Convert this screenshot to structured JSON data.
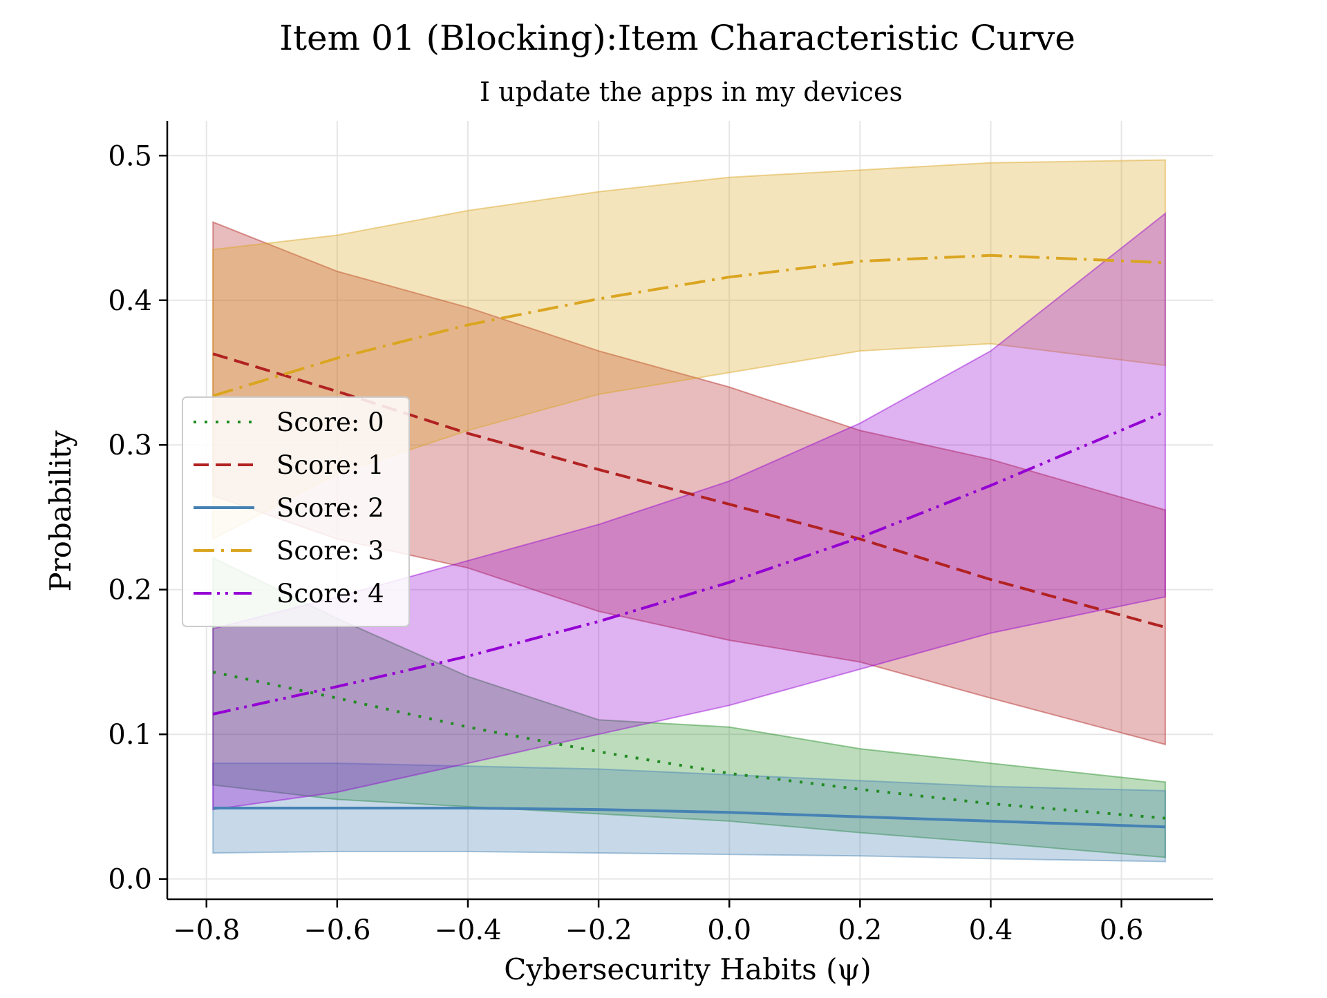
{
  "chart_data": {
    "type": "line",
    "title": "Item 01 (Blocking):Item Characteristic Curve",
    "subtitle": "I update the apps in my devices",
    "xlabel": "Cybersecurity Habits (ψ)",
    "ylabel": "Probability",
    "xlim": [
      -0.86,
      0.74
    ],
    "ylim": [
      -0.014,
      0.524
    ],
    "x_ticks": [
      "−0.8",
      "−0.6",
      "−0.4",
      "−0.2",
      "0.0",
      "0.2",
      "0.4",
      "0.6"
    ],
    "x_tick_values": [
      -0.8,
      -0.6,
      -0.4,
      -0.2,
      0.0,
      0.2,
      0.4,
      0.6
    ],
    "y_ticks": [
      "0.0",
      "0.1",
      "0.2",
      "0.3",
      "0.4",
      "0.5"
    ],
    "y_tick_values": [
      0.0,
      0.1,
      0.2,
      0.3,
      0.4,
      0.5
    ],
    "grid": true,
    "legend_position": "center-left",
    "x": [
      -0.79,
      -0.6,
      -0.4,
      -0.2,
      0.0,
      0.2,
      0.4,
      0.667
    ],
    "series": [
      {
        "name": "Score: 0",
        "color": "#228B22",
        "dash": "dotted",
        "values": [
          0.143,
          0.125,
          0.105,
          0.088,
          0.073,
          0.062,
          0.052,
          0.042
        ],
        "lower": [
          0.065,
          0.055,
          0.05,
          0.045,
          0.04,
          0.032,
          0.025,
          0.015
        ],
        "upper": [
          0.222,
          0.18,
          0.14,
          0.11,
          0.105,
          0.09,
          0.08,
          0.067
        ]
      },
      {
        "name": "Score: 1",
        "color": "#B22222",
        "dash": "dashed",
        "values": [
          0.363,
          0.337,
          0.308,
          0.283,
          0.259,
          0.235,
          0.207,
          0.174
        ],
        "lower": [
          0.265,
          0.235,
          0.215,
          0.185,
          0.165,
          0.15,
          0.125,
          0.093
        ],
        "upper": [
          0.454,
          0.42,
          0.395,
          0.365,
          0.34,
          0.31,
          0.29,
          0.255
        ]
      },
      {
        "name": "Score: 2",
        "color": "#4682B4",
        "dash": "solid",
        "values": [
          0.049,
          0.049,
          0.049,
          0.048,
          0.046,
          0.043,
          0.04,
          0.036
        ],
        "lower": [
          0.018,
          0.019,
          0.019,
          0.018,
          0.017,
          0.016,
          0.014,
          0.012
        ],
        "upper": [
          0.08,
          0.08,
          0.078,
          0.076,
          0.072,
          0.068,
          0.064,
          0.061
        ]
      },
      {
        "name": "Score: 3",
        "color": "#DAA520",
        "dash": "dashdot",
        "values": [
          0.334,
          0.36,
          0.383,
          0.401,
          0.416,
          0.427,
          0.431,
          0.426
        ],
        "lower": [
          0.235,
          0.28,
          0.31,
          0.335,
          0.35,
          0.365,
          0.37,
          0.355
        ],
        "upper": [
          0.435,
          0.445,
          0.462,
          0.475,
          0.485,
          0.49,
          0.495,
          0.497
        ]
      },
      {
        "name": "Score: 4",
        "color": "#9400D3",
        "dash": "dashdotdot",
        "values": [
          0.114,
          0.133,
          0.154,
          0.178,
          0.205,
          0.236,
          0.272,
          0.323
        ],
        "lower": [
          0.048,
          0.06,
          0.08,
          0.1,
          0.12,
          0.145,
          0.17,
          0.195
        ],
        "upper": [
          0.173,
          0.195,
          0.22,
          0.245,
          0.275,
          0.315,
          0.365,
          0.46
        ]
      }
    ]
  }
}
